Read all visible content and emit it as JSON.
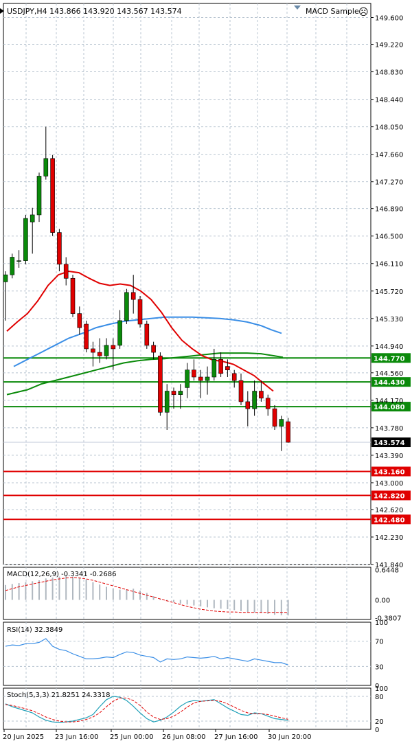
{
  "header": {
    "symbol_info": "USDJPY,H4  143.866 143.920 143.567 143.574",
    "indicator_name": "MACD Sample",
    "smiley": "☹"
  },
  "price_axis": {
    "ticks": [
      "149.600",
      "149.220",
      "148.830",
      "148.440",
      "148.050",
      "147.660",
      "147.270",
      "146.890",
      "146.500",
      "146.110",
      "145.720",
      "145.330",
      "144.940",
      "144.560",
      "144.170",
      "143.780",
      "143.390",
      "143.000",
      "142.620",
      "142.230",
      "141.840"
    ],
    "current_price_label": "143.574"
  },
  "levels": [
    {
      "value": 144.77,
      "label": "144.770",
      "color": "#0a8a0a"
    },
    {
      "value": 144.43,
      "label": "144.430",
      "color": "#0a8a0a"
    },
    {
      "value": 144.08,
      "label": "144.080",
      "color": "#0a8a0a"
    },
    {
      "value": 143.16,
      "label": "143.160",
      "color": "#e00000"
    },
    {
      "value": 142.82,
      "label": "142.820",
      "color": "#e00000"
    },
    {
      "value": 142.48,
      "label": "142.480",
      "color": "#e00000"
    }
  ],
  "macd_panel": {
    "title": "MACD(12,26,9) -0.3341 -0.2686",
    "ticks": [
      "0.6448",
      "0.00",
      "-0.3807"
    ]
  },
  "rsi_panel": {
    "title": "RSI(14) 32.3849",
    "ticks": [
      "100",
      "70",
      "30",
      "0"
    ]
  },
  "stoch_panel": {
    "title": "Stoch(5,3,3) 21.8251 24.3318",
    "ticks": [
      "100",
      "80",
      "20",
      "0"
    ]
  },
  "time_axis": [
    "20 Jun 2025",
    "23 Jun 16:00",
    "25 Jun 00:00",
    "26 Jun 08:00",
    "27 Jun 16:00",
    "30 Jun 20:00"
  ],
  "colors": {
    "bull": "#0a8a0a",
    "bear": "#e00000",
    "ma_slow": "#3a8ee6",
    "ma_fast": "#e00000",
    "ma_green": "#0a8a0a",
    "grid": "#b8c4d0",
    "panel_line": "#3a8ee6"
  },
  "chart_data": {
    "type": "candlestick",
    "symbol": "USDJPY",
    "timeframe": "H4",
    "ylim": [
      141.84,
      149.8
    ],
    "candles": [
      {
        "o": 145.85,
        "h": 146.0,
        "l": 145.3,
        "c": 145.95
      },
      {
        "o": 145.95,
        "h": 146.25,
        "l": 145.9,
        "c": 146.2
      },
      {
        "o": 146.15,
        "h": 146.3,
        "l": 146.05,
        "c": 146.15
      },
      {
        "o": 146.15,
        "h": 146.8,
        "l": 146.1,
        "c": 146.75
      },
      {
        "o": 146.7,
        "h": 146.9,
        "l": 146.25,
        "c": 146.8
      },
      {
        "o": 146.8,
        "h": 147.4,
        "l": 146.7,
        "c": 147.35
      },
      {
        "o": 147.35,
        "h": 148.05,
        "l": 147.3,
        "c": 147.6
      },
      {
        "o": 147.6,
        "h": 147.65,
        "l": 146.5,
        "c": 146.55
      },
      {
        "o": 146.55,
        "h": 146.6,
        "l": 146.0,
        "c": 146.1
      },
      {
        "o": 146.1,
        "h": 146.2,
        "l": 145.8,
        "c": 145.9
      },
      {
        "o": 145.9,
        "h": 145.95,
        "l": 145.35,
        "c": 145.4
      },
      {
        "o": 145.4,
        "h": 145.5,
        "l": 145.1,
        "c": 145.2
      },
      {
        "o": 145.25,
        "h": 145.3,
        "l": 144.85,
        "c": 144.9
      },
      {
        "o": 144.9,
        "h": 145.0,
        "l": 144.65,
        "c": 144.85
      },
      {
        "o": 144.85,
        "h": 145.05,
        "l": 144.7,
        "c": 144.8
      },
      {
        "o": 144.8,
        "h": 145.05,
        "l": 144.75,
        "c": 144.95
      },
      {
        "o": 144.95,
        "h": 145.05,
        "l": 144.6,
        "c": 144.9
      },
      {
        "o": 144.95,
        "h": 145.45,
        "l": 144.9,
        "c": 145.3
      },
      {
        "o": 145.3,
        "h": 145.75,
        "l": 145.25,
        "c": 145.7
      },
      {
        "o": 145.7,
        "h": 145.95,
        "l": 145.4,
        "c": 145.6
      },
      {
        "o": 145.6,
        "h": 145.65,
        "l": 145.2,
        "c": 145.25
      },
      {
        "o": 145.25,
        "h": 145.3,
        "l": 144.9,
        "c": 144.95
      },
      {
        "o": 144.95,
        "h": 145.0,
        "l": 144.75,
        "c": 144.85
      },
      {
        "o": 144.8,
        "h": 144.85,
        "l": 143.95,
        "c": 144.0
      },
      {
        "o": 144.0,
        "h": 144.4,
        "l": 143.75,
        "c": 144.3
      },
      {
        "o": 144.3,
        "h": 144.35,
        "l": 144.05,
        "c": 144.25
      },
      {
        "o": 144.25,
        "h": 144.4,
        "l": 144.05,
        "c": 144.3
      },
      {
        "o": 144.35,
        "h": 144.7,
        "l": 144.2,
        "c": 144.6
      },
      {
        "o": 144.6,
        "h": 144.75,
        "l": 144.45,
        "c": 144.5
      },
      {
        "o": 144.5,
        "h": 144.6,
        "l": 144.2,
        "c": 144.45
      },
      {
        "o": 144.45,
        "h": 144.65,
        "l": 144.25,
        "c": 144.5
      },
      {
        "o": 144.5,
        "h": 144.9,
        "l": 144.45,
        "c": 144.75
      },
      {
        "o": 144.75,
        "h": 144.85,
        "l": 144.5,
        "c": 144.55
      },
      {
        "o": 144.65,
        "h": 144.75,
        "l": 144.5,
        "c": 144.6
      },
      {
        "o": 144.55,
        "h": 144.6,
        "l": 144.35,
        "c": 144.45
      },
      {
        "o": 144.45,
        "h": 144.55,
        "l": 144.1,
        "c": 144.15
      },
      {
        "o": 144.15,
        "h": 144.3,
        "l": 143.8,
        "c": 144.05
      },
      {
        "o": 144.05,
        "h": 144.45,
        "l": 143.95,
        "c": 144.3
      },
      {
        "o": 144.3,
        "h": 144.45,
        "l": 144.15,
        "c": 144.2
      },
      {
        "o": 144.2,
        "h": 144.25,
        "l": 143.95,
        "c": 144.05
      },
      {
        "o": 144.05,
        "h": 144.1,
        "l": 143.75,
        "c": 143.8
      },
      {
        "o": 143.8,
        "h": 143.95,
        "l": 143.45,
        "c": 143.9
      },
      {
        "o": 143.866,
        "h": 143.92,
        "l": 143.567,
        "c": 143.574
      }
    ],
    "ma_slow": [
      [
        20,
        144.65
      ],
      [
        40,
        144.75
      ],
      [
        60,
        144.85
      ],
      [
        80,
        144.95
      ],
      [
        100,
        145.05
      ],
      [
        120,
        145.12
      ],
      [
        140,
        145.2
      ],
      [
        160,
        145.25
      ],
      [
        180,
        145.29
      ],
      [
        200,
        145.31
      ],
      [
        220,
        145.33
      ],
      [
        240,
        145.35
      ],
      [
        260,
        145.35
      ],
      [
        280,
        145.35
      ],
      [
        300,
        145.34
      ],
      [
        320,
        145.33
      ],
      [
        340,
        145.31
      ],
      [
        360,
        145.28
      ],
      [
        380,
        145.23
      ],
      [
        395,
        145.17
      ],
      [
        410,
        145.12
      ]
    ],
    "ma_fast": [
      [
        10,
        145.15
      ],
      [
        25,
        145.28
      ],
      [
        40,
        145.4
      ],
      [
        55,
        145.58
      ],
      [
        70,
        145.8
      ],
      [
        85,
        145.95
      ],
      [
        100,
        146.0
      ],
      [
        115,
        145.98
      ],
      [
        130,
        145.9
      ],
      [
        145,
        145.83
      ],
      [
        160,
        145.8
      ],
      [
        175,
        145.82
      ],
      [
        190,
        145.8
      ],
      [
        205,
        145.72
      ],
      [
        220,
        145.6
      ],
      [
        235,
        145.42
      ],
      [
        250,
        145.2
      ],
      [
        265,
        145.02
      ],
      [
        280,
        144.9
      ],
      [
        295,
        144.8
      ],
      [
        310,
        144.74
      ],
      [
        325,
        144.72
      ],
      [
        340,
        144.68
      ],
      [
        355,
        144.6
      ],
      [
        370,
        144.52
      ],
      [
        385,
        144.4
      ],
      [
        398,
        144.3
      ]
    ],
    "ma_green": [
      [
        10,
        144.25
      ],
      [
        40,
        144.32
      ],
      [
        60,
        144.4
      ],
      [
        80,
        144.45
      ],
      [
        100,
        144.5
      ],
      [
        120,
        144.55
      ],
      [
        140,
        144.6
      ],
      [
        160,
        144.65
      ],
      [
        180,
        144.7
      ],
      [
        200,
        144.73
      ],
      [
        220,
        144.75
      ],
      [
        240,
        144.76
      ],
      [
        260,
        144.78
      ],
      [
        280,
        144.8
      ],
      [
        300,
        144.82
      ],
      [
        320,
        144.84
      ],
      [
        340,
        144.84
      ],
      [
        360,
        144.84
      ],
      [
        380,
        144.83
      ],
      [
        400,
        144.8
      ],
      [
        412,
        144.78
      ]
    ],
    "macd": {
      "ylim": [
        -0.42,
        0.7
      ],
      "histogram": [
        0.32,
        0.34,
        0.36,
        0.38,
        0.4,
        0.42,
        0.46,
        0.48,
        0.5,
        0.52,
        0.5,
        0.48,
        0.44,
        0.38,
        0.33,
        0.28,
        0.24,
        0.22,
        0.22,
        0.24,
        0.2,
        0.15,
        0.08,
        0.02,
        -0.02,
        -0.05,
        -0.08,
        -0.1,
        -0.12,
        -0.14,
        -0.16,
        -0.18,
        -0.19,
        -0.2,
        -0.22,
        -0.24,
        -0.26,
        -0.27,
        -0.28,
        -0.3,
        -0.32,
        -0.33,
        -0.3341
      ],
      "signal": [
        0.2,
        0.24,
        0.28,
        0.31,
        0.34,
        0.37,
        0.4,
        0.43,
        0.45,
        0.47,
        0.48,
        0.47,
        0.45,
        0.42,
        0.38,
        0.34,
        0.3,
        0.26,
        0.22,
        0.18,
        0.14,
        0.1,
        0.06,
        0.02,
        -0.02,
        -0.06,
        -0.1,
        -0.14,
        -0.17,
        -0.2,
        -0.22,
        -0.24,
        -0.25,
        -0.26,
        -0.26,
        -0.27,
        -0.27,
        -0.27,
        -0.27,
        -0.27,
        -0.27,
        -0.27,
        -0.2686
      ]
    },
    "rsi": [
      62,
      64,
      63,
      66,
      66,
      68,
      74,
      62,
      57,
      55,
      50,
      46,
      42,
      42,
      43,
      45,
      44,
      49,
      53,
      52,
      48,
      46,
      44,
      37,
      42,
      41,
      42,
      45,
      44,
      43,
      44,
      46,
      42,
      44,
      42,
      40,
      38,
      42,
      40,
      38,
      36,
      36,
      32.38
    ],
    "stoch": {
      "k": [
        62,
        55,
        50,
        45,
        40,
        30,
        22,
        18,
        16,
        18,
        20,
        24,
        28,
        36,
        55,
        72,
        80,
        78,
        70,
        56,
        40,
        26,
        18,
        22,
        30,
        42,
        56,
        66,
        70,
        68,
        70,
        72,
        62,
        52,
        44,
        36,
        34,
        40,
        38,
        32,
        26,
        24,
        21.83
      ],
      "d": [
        60,
        58,
        54,
        50,
        45,
        38,
        30,
        24,
        20,
        18,
        18,
        20,
        24,
        30,
        40,
        55,
        68,
        76,
        76,
        70,
        58,
        42,
        30,
        24,
        26,
        32,
        42,
        54,
        64,
        68,
        69,
        70,
        68,
        62,
        54,
        46,
        40,
        38,
        38,
        36,
        32,
        28,
        24.33
      ]
    }
  }
}
